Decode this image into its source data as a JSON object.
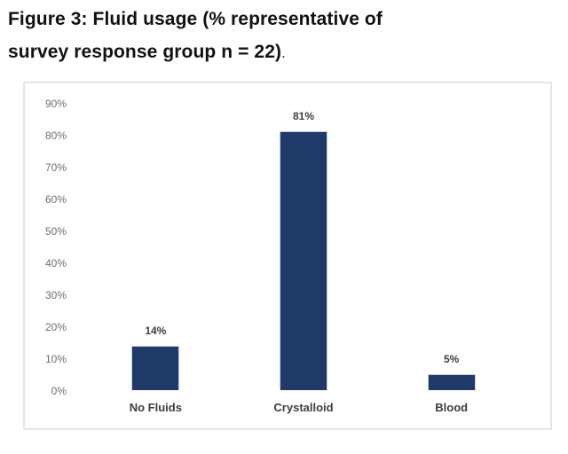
{
  "figure_caption": {
    "line1": "Figure 3: Fluid usage (% representative of",
    "line2_bold": "survey response group n = 22)",
    "line2_period": "."
  },
  "chart_data": {
    "type": "bar",
    "title": "Figure 3: Fluid usage (% representative of survey response group n = 22).",
    "categories": [
      "No Fluids",
      "Crystalloid",
      "Blood"
    ],
    "values": [
      14,
      81,
      5
    ],
    "value_labels": [
      "14%",
      "81%",
      "5%"
    ],
    "xlabel": "",
    "ylabel": "",
    "ylim": [
      0,
      90
    ],
    "y_tick_step": 10,
    "y_tick_labels": [
      "90%",
      "80%",
      "70%",
      "60%",
      "50%",
      "40%",
      "30%",
      "20%",
      "10%",
      "0%"
    ],
    "grid": false,
    "legend": false,
    "bar_color": "#1f3a68",
    "bar_border_color": "#c3cde0",
    "frame_border_color": "#e0e6ee",
    "tick_label_color": "#6e6e6e",
    "data_label_color": "#3d3d3d"
  }
}
